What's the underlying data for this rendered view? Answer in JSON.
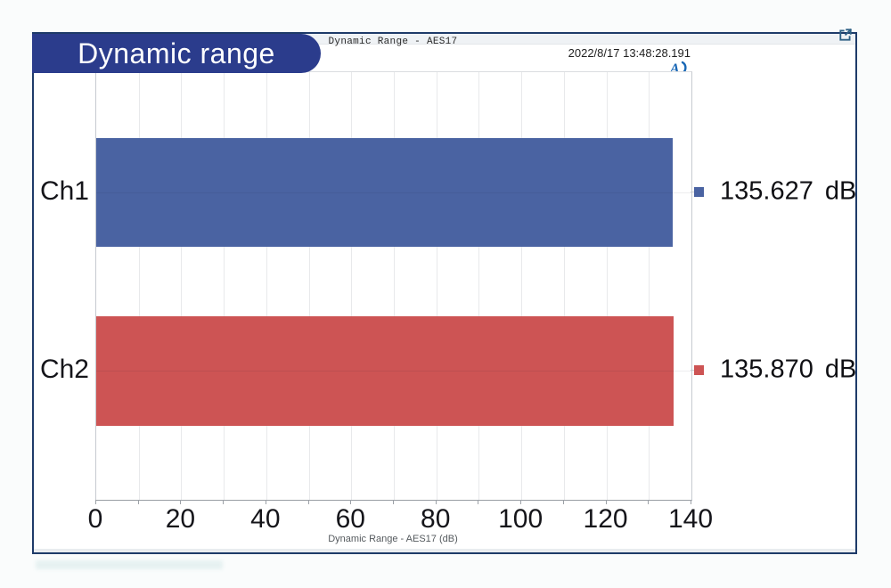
{
  "overlay": {
    "badge_label": "Dynamic range"
  },
  "header": {
    "timestamp": "2022/8/17 13:48:28.191",
    "expand_icon": "external-link-icon",
    "logo_icon": "audio-precision-logo"
  },
  "chart_data": {
    "type": "bar",
    "orientation": "horizontal",
    "title": "Dynamic Range - AES17",
    "categories": [
      "Ch1",
      "Ch2"
    ],
    "values": [
      135.627,
      135.87
    ],
    "value_labels": [
      "135.627",
      "135.870"
    ],
    "unit": "dB",
    "series_colors": [
      "#4A63A2",
      "#CD5454"
    ],
    "xlabel": "Dynamic Range - AES17 (dB)",
    "xlim": [
      0,
      140
    ],
    "xticks": [
      0,
      20,
      40,
      60,
      80,
      100,
      120,
      140
    ],
    "grid_step": 10,
    "grid": true,
    "legend_position": "none"
  },
  "colors": {
    "panel_border": "#1E3B69",
    "badge_bg": "#2B3C8C",
    "bar_blue": "#4A63A2",
    "bar_red": "#CD5454",
    "expand_icon": "#2D6085",
    "logo_blue": "#1766B5"
  }
}
